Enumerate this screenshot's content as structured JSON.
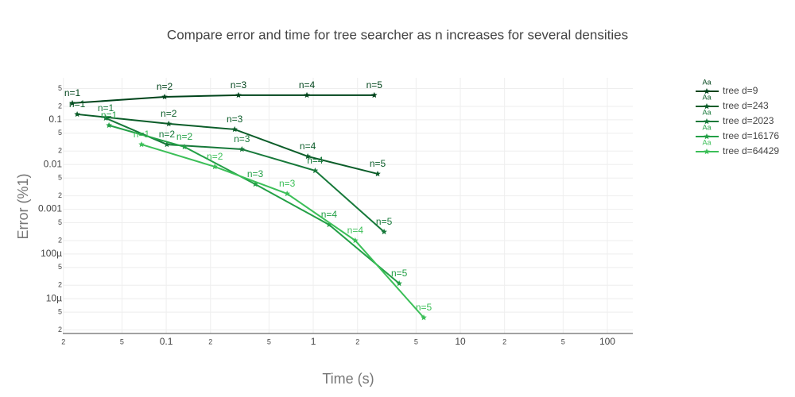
{
  "chart_data": {
    "type": "line",
    "title": "Compare error and time for tree searcher as n increases for several densities",
    "x_label": "Time (s)",
    "y_label": "Error (%1)",
    "x_log": true,
    "y_log": true,
    "grid": true,
    "legend_position": "right",
    "legend_marker_label": "Aa",
    "xlim": [
      0.0198,
      149
    ],
    "ylim": [
      1.67e-06,
      0.87
    ],
    "xticks": [
      {
        "value": 0.02,
        "label": "2"
      },
      {
        "value": 0.05,
        "label": "5"
      },
      0.1,
      {
        "value": 0.2,
        "label": "2"
      },
      {
        "value": 0.5,
        "label": "5"
      },
      1,
      2,
      5,
      10,
      {
        "value": 20,
        "label": "2"
      },
      {
        "value": 50,
        "label": "5"
      },
      100
    ],
    "yticks": [
      {
        "value": 0.5,
        "label": "5"
      },
      {
        "value": 0.2,
        "label": "2"
      },
      0.1,
      {
        "value": 0.05,
        "label": "5"
      },
      {
        "value": 0.02,
        "label": "2"
      },
      0.01,
      {
        "value": 0.005,
        "label": "5"
      },
      {
        "value": 0.002,
        "label": "2"
      },
      0.001,
      {
        "value": 0.0005,
        "label": "5"
      },
      {
        "value": 0.0002,
        "label": "2"
      },
      {
        "value": 0.0001,
        "label": "100µ"
      },
      {
        "value": 5e-05,
        "label": "5"
      },
      {
        "value": 2e-05,
        "label": "2"
      },
      {
        "value": 1e-05,
        "label": "10µ"
      },
      {
        "value": 5e-06,
        "label": "5"
      },
      {
        "value": 2e-06,
        "label": "2"
      }
    ],
    "series": [
      {
        "name": "tree d=9",
        "color": "#00441b",
        "x": [
          0.023,
          0.0975,
          0.31,
          0.905,
          2.6
        ],
        "values": [
          0.236,
          0.327,
          0.356,
          0.356,
          0.356
        ],
        "text": [
          "n=1",
          "n=2",
          "n=3",
          "n=4",
          "n=5"
        ]
      },
      {
        "name": "tree d=243",
        "color": "#0b5d29",
        "x": [
          0.0248,
          0.104,
          0.292,
          0.917,
          2.74
        ],
        "values": [
          0.133,
          0.0815,
          0.0612,
          0.0152,
          0.0062
        ],
        "text": [
          "n=1",
          "n=2",
          "n=3",
          "n=4",
          "n=5"
        ]
      },
      {
        "name": "tree d=2023",
        "color": "#17793a",
        "x": [
          0.0388,
          0.101,
          0.327,
          1.03,
          3.03
        ],
        "values": [
          0.109,
          0.0281,
          0.022,
          0.0073,
          0.000313
        ],
        "text": [
          "n=1",
          "n=2",
          "n=3",
          "n=4",
          "n=5"
        ]
      },
      {
        "name": "tree d=16176",
        "color": "#23a046",
        "x": [
          0.0408,
          0.133,
          0.403,
          1.28,
          3.84
        ],
        "values": [
          0.0752,
          0.0249,
          0.00364,
          0.000452,
          2.19e-05
        ],
        "text": [
          "n=1",
          "n=2",
          "n=3",
          "n=4",
          "n=5"
        ]
      },
      {
        "name": "tree d=64429",
        "color": "#3cbf58",
        "x": [
          0.0679,
          0.214,
          0.664,
          1.93,
          5.64
        ],
        "values": [
          0.0281,
          0.00895,
          0.00223,
          0.0002,
          3.78e-06
        ],
        "text": [
          "n=1",
          "n=2",
          "n=3",
          "n=4",
          "n=5"
        ]
      }
    ]
  }
}
